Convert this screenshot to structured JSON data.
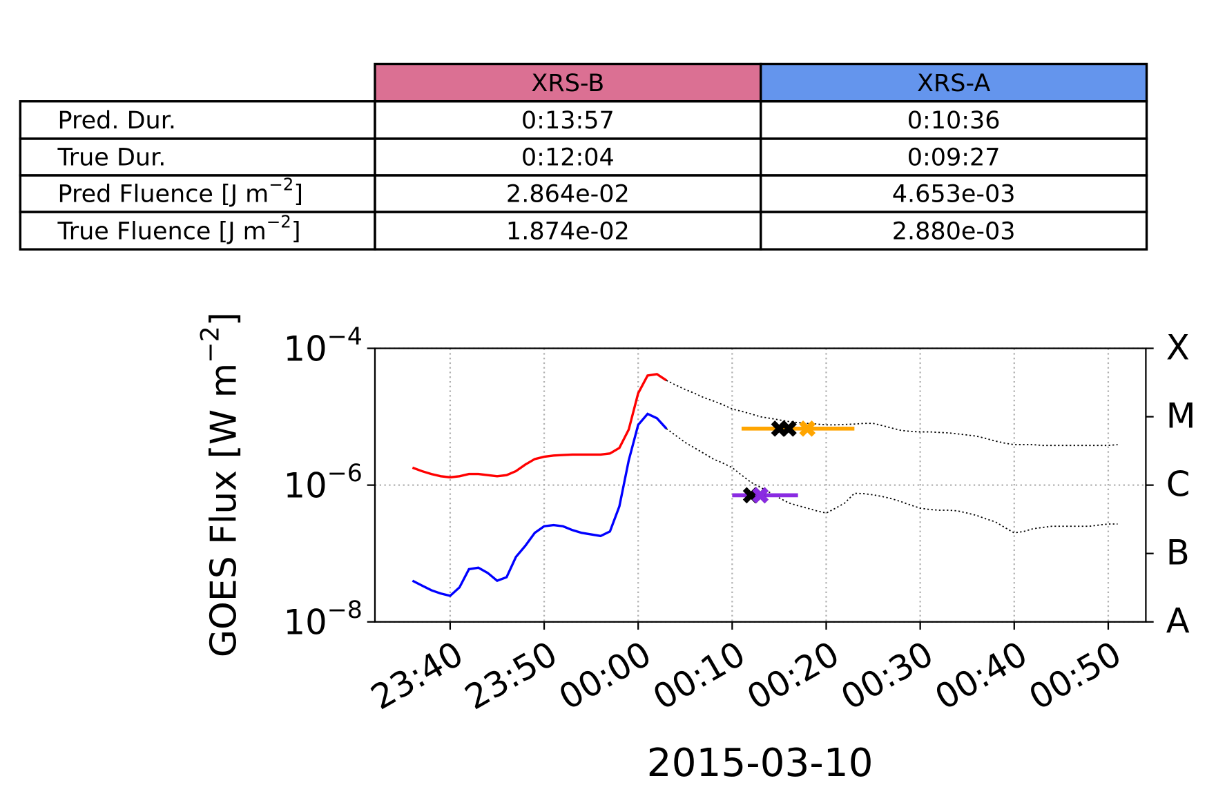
{
  "table": {
    "columns": [
      "XRS-B",
      "XRS-A"
    ],
    "column_colors": [
      "#db7093",
      "#6495ed"
    ],
    "rows": [
      [
        "Pred. Dur.",
        "0:13:57",
        "0:10:36"
      ],
      [
        "True Dur.",
        "0:12:04",
        "0:09:27"
      ],
      [
        "Pred Fluence [J m−2]",
        "2.864e-02",
        "4.653e-03"
      ],
      [
        "True Fluence [J m−2]",
        "1.874e-02",
        "2.880e-03"
      ]
    ]
  },
  "chart_data": {
    "type": "line",
    "x_label": "2015-03-10",
    "y_label": "GOES Flux [W m−2]",
    "log_y": true,
    "grid": true,
    "xlim": [
      "23:32",
      "00:54"
    ],
    "xticks": [
      "23:40",
      "23:50",
      "00:00",
      "00:10",
      "00:20",
      "00:30",
      "00:40",
      "00:50"
    ],
    "ylim": [
      1e-08,
      0.0001
    ],
    "yticks": [
      {
        "value": 1e-08,
        "label": "10−8"
      },
      {
        "value": 1e-06,
        "label": "10−6"
      },
      {
        "value": 0.0001,
        "label": "10−4"
      }
    ],
    "y2lim": [
      1e-08,
      0.0001
    ],
    "y2ticks": [
      {
        "value": 1e-08,
        "label": "A"
      },
      {
        "value": 1e-07,
        "label": "B"
      },
      {
        "value": 1e-06,
        "label": "C"
      },
      {
        "value": 1e-05,
        "label": "M"
      },
      {
        "value": 0.0001,
        "label": "X"
      }
    ],
    "x": [
      "23:36",
      "23:37",
      "23:38",
      "23:39",
      "23:40",
      "23:41",
      "23:42",
      "23:43",
      "23:44",
      "23:45",
      "23:46",
      "23:47",
      "23:48",
      "23:49",
      "23:50",
      "23:51",
      "23:52",
      "23:53",
      "23:54",
      "23:55",
      "23:56",
      "23:57",
      "23:58",
      "23:59",
      "00:00",
      "00:01",
      "00:02",
      "00:03",
      "00:04",
      "00:05",
      "00:06",
      "00:07",
      "00:08",
      "00:09",
      "00:10",
      "00:11",
      "00:12",
      "00:13",
      "00:14",
      "00:15",
      "00:16",
      "00:17",
      "00:18",
      "00:19",
      "00:20",
      "00:21",
      "00:22",
      "00:23",
      "00:24",
      "00:25",
      "00:26",
      "00:27",
      "00:28",
      "00:29",
      "00:30",
      "00:31",
      "00:32",
      "00:33",
      "00:34",
      "00:35",
      "00:36",
      "00:37",
      "00:38",
      "00:39",
      "00:40",
      "00:41",
      "00:42",
      "00:43",
      "00:44",
      "00:45",
      "00:46",
      "00:47",
      "00:48",
      "00:49",
      "00:50",
      "00:51"
    ],
    "series": [
      {
        "color": "#ff0000",
        "style": "solid",
        "values": [
          1.8e-06,
          1.6e-06,
          1.45e-06,
          1.35e-06,
          1.3e-06,
          1.35e-06,
          1.45e-06,
          1.45e-06,
          1.4e-06,
          1.35e-06,
          1.4e-06,
          1.6e-06,
          2e-06,
          2.4e-06,
          2.6e-06,
          2.7e-06,
          2.75e-06,
          2.8e-06,
          2.8e-06,
          2.8e-06,
          2.8e-06,
          2.9e-06,
          3.5e-06,
          6.5e-06,
          2.2e-05,
          4e-05,
          4.2e-05,
          3.4e-05,
          null,
          null,
          null,
          null,
          null,
          null,
          null,
          null,
          null,
          null,
          null,
          null,
          null,
          null,
          null,
          null,
          null,
          null,
          null,
          null,
          null,
          null,
          null,
          null,
          null,
          null,
          null,
          null,
          null,
          null,
          null,
          null,
          null,
          null,
          null,
          null,
          null,
          null,
          null,
          null,
          null,
          null,
          null,
          null,
          null,
          null,
          null,
          null
        ]
      },
      {
        "color": "#0000ff",
        "style": "solid",
        "values": [
          4e-08,
          3.4e-08,
          2.9e-08,
          2.6e-08,
          2.4e-08,
          3.2e-08,
          5.9e-08,
          6.2e-08,
          5.2e-08,
          4e-08,
          4.5e-08,
          8.9e-08,
          1.3e-07,
          2e-07,
          2.5e-07,
          2.6e-07,
          2.5e-07,
          2.2e-07,
          2e-07,
          1.9e-07,
          1.8e-07,
          2.1e-07,
          4.9e-07,
          2.3e-06,
          7.6e-06,
          1.1e-05,
          9.5e-06,
          6.7e-06,
          null,
          null,
          null,
          null,
          null,
          null,
          null,
          null,
          null,
          null,
          null,
          null,
          null,
          null,
          null,
          null,
          null,
          null,
          null,
          null,
          null,
          null,
          null,
          null,
          null,
          null,
          null,
          null,
          null,
          null,
          null,
          null,
          null,
          null,
          null,
          null,
          null,
          null,
          null,
          null,
          null,
          null,
          null,
          null,
          null,
          null,
          null,
          null
        ]
      },
      {
        "color": "#000000",
        "style": "dotted",
        "values": [
          null,
          null,
          null,
          null,
          null,
          null,
          null,
          null,
          null,
          null,
          null,
          null,
          null,
          null,
          null,
          null,
          null,
          null,
          null,
          null,
          null,
          null,
          null,
          null,
          null,
          null,
          null,
          3.4e-05,
          2.9e-05,
          2.5e-05,
          2.2e-05,
          1.9e-05,
          1.7e-05,
          1.5e-05,
          1.3e-05,
          1.2e-05,
          1.1e-05,
          1e-05,
          9.5e-06,
          9e-06,
          8.5e-06,
          8.2e-06,
          8e-06,
          7.8e-06,
          7.6e-06,
          7.6e-06,
          7.7e-06,
          7.8e-06,
          8e-06,
          8e-06,
          7.4e-06,
          6.8e-06,
          6.3e-06,
          6.1e-06,
          6e-06,
          6e-06,
          5.9e-06,
          5.8e-06,
          5.6e-06,
          5.4e-06,
          5.2e-06,
          4.8e-06,
          4.4e-06,
          4.1e-06,
          3.9e-06,
          3.9e-06,
          3.9e-06,
          3.8e-06,
          3.8e-06,
          3.8e-06,
          3.8e-06,
          3.8e-06,
          3.8e-06,
          3.8e-06,
          3.8e-06,
          3.9e-06
        ]
      },
      {
        "color": "#000000",
        "style": "dotted",
        "values": [
          null,
          null,
          null,
          null,
          null,
          null,
          null,
          null,
          null,
          null,
          null,
          null,
          null,
          null,
          null,
          null,
          null,
          null,
          null,
          null,
          null,
          null,
          null,
          null,
          null,
          null,
          null,
          6.7e-06,
          5.3e-06,
          4.2e-06,
          3.5e-06,
          2.9e-06,
          2.4e-06,
          2.1e-06,
          1.8e-06,
          1.4e-06,
          1.1e-06,
          9.3e-07,
          7.8e-07,
          6.5e-07,
          5.5e-07,
          5e-07,
          4.6e-07,
          4.2e-07,
          3.9e-07,
          4.6e-07,
          5.5e-07,
          7.6e-07,
          7.5e-07,
          7.2e-07,
          6.8e-07,
          6.3e-07,
          5.7e-07,
          5.1e-07,
          4.6e-07,
          4.4e-07,
          4.3e-07,
          4.3e-07,
          4.2e-07,
          3.9e-07,
          3.6e-07,
          3.2e-07,
          2.9e-07,
          2.4e-07,
          2e-07,
          2.1e-07,
          2.3e-07,
          2.4e-07,
          2.5e-07,
          2.5e-07,
          2.5e-07,
          2.5e-07,
          2.5e-07,
          2.6e-07,
          2.7e-07,
          2.7e-07
        ]
      }
    ],
    "segments": [
      {
        "color": "#ffa500",
        "x": [
          "00:11",
          "00:23"
        ],
        "y": 6.7e-06
      },
      {
        "color": "#8a2be2",
        "x": [
          "00:10",
          "00:17"
        ],
        "y": 7.1e-07
      }
    ],
    "points": [
      {
        "color": "#000000",
        "x": "00:15",
        "y": 6.7e-06
      },
      {
        "color": "#000000",
        "x": "00:16",
        "y": 6.7e-06
      },
      {
        "color": "#ffa500",
        "x": "00:18",
        "y": 6.7e-06
      },
      {
        "color": "#000000",
        "x": "00:12",
        "y": 7.1e-07
      },
      {
        "color": "#000000",
        "x": "00:13",
        "y": 7.1e-07
      },
      {
        "color": "#8a2be2",
        "x": "00:13",
        "y": 7.1e-07
      }
    ]
  }
}
